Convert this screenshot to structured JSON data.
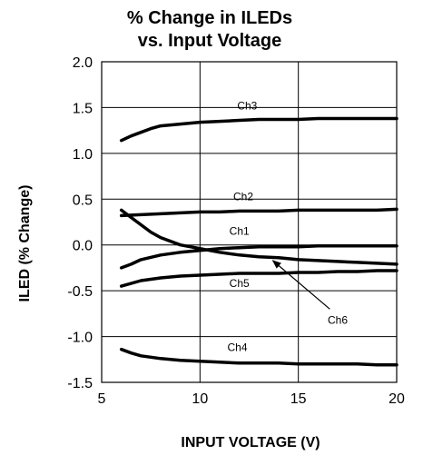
{
  "chart_data": {
    "type": "line",
    "title_lines": [
      "% Change in ILEDs",
      "vs. Input Voltage"
    ],
    "xlabel": "INPUT VOLTAGE (V)",
    "ylabel": "ILED (% Change)",
    "xlim": [
      5,
      20
    ],
    "ylim": [
      -1.5,
      2.0
    ],
    "xticks": [
      5,
      10,
      15,
      20
    ],
    "yticks": [
      "2.0",
      "1.5",
      "1.0",
      "0.5",
      "0.0",
      "-0.5",
      "-1.0",
      "-1.5"
    ],
    "ytick_values": [
      2.0,
      1.5,
      1.0,
      0.5,
      0.0,
      -0.5,
      -1.0,
      -1.5
    ],
    "grid": {
      "x": true,
      "y": true
    },
    "series": [
      {
        "name": "Ch3",
        "x": [
          6,
          6.5,
          7,
          7.5,
          8,
          9,
          10,
          11,
          12,
          13,
          14,
          15,
          16,
          17,
          18,
          19,
          20
        ],
        "values": [
          1.14,
          1.19,
          1.23,
          1.27,
          1.3,
          1.32,
          1.34,
          1.35,
          1.36,
          1.37,
          1.37,
          1.37,
          1.38,
          1.38,
          1.38,
          1.38,
          1.38
        ]
      },
      {
        "name": "Ch2",
        "x": [
          6,
          7,
          8,
          9,
          10,
          11,
          12,
          13,
          14,
          15,
          16,
          17,
          18,
          19,
          20
        ],
        "values": [
          0.32,
          0.33,
          0.34,
          0.35,
          0.36,
          0.36,
          0.37,
          0.37,
          0.37,
          0.38,
          0.38,
          0.38,
          0.38,
          0.38,
          0.39
        ]
      },
      {
        "name": "Ch1",
        "x": [
          6,
          6.5,
          7,
          8,
          9,
          10,
          11,
          12,
          13,
          14,
          15,
          16,
          17,
          18,
          19,
          20
        ],
        "values": [
          -0.25,
          -0.21,
          -0.16,
          -0.11,
          -0.08,
          -0.06,
          -0.04,
          -0.03,
          -0.02,
          -0.02,
          -0.02,
          -0.01,
          -0.01,
          -0.01,
          -0.01,
          -0.01
        ]
      },
      {
        "name": "Ch6",
        "x": [
          6,
          6.5,
          7,
          7.5,
          8,
          9,
          10,
          11,
          12,
          13,
          14,
          15,
          16,
          17,
          18,
          19,
          20
        ],
        "values": [
          0.38,
          0.3,
          0.22,
          0.14,
          0.08,
          0.0,
          -0.04,
          -0.08,
          -0.11,
          -0.13,
          -0.14,
          -0.16,
          -0.17,
          -0.18,
          -0.19,
          -0.2,
          -0.21
        ]
      },
      {
        "name": "Ch5",
        "x": [
          6,
          7,
          8,
          9,
          10,
          11,
          12,
          13,
          14,
          15,
          16,
          17,
          18,
          19,
          20
        ],
        "values": [
          -0.45,
          -0.39,
          -0.36,
          -0.34,
          -0.33,
          -0.32,
          -0.31,
          -0.31,
          -0.31,
          -0.3,
          -0.3,
          -0.29,
          -0.29,
          -0.28,
          -0.28
        ]
      },
      {
        "name": "Ch4",
        "x": [
          6,
          6.5,
          7,
          8,
          9,
          10,
          11,
          12,
          13,
          14,
          15,
          16,
          17,
          18,
          19,
          20
        ],
        "values": [
          -1.14,
          -1.18,
          -1.21,
          -1.24,
          -1.26,
          -1.27,
          -1.28,
          -1.29,
          -1.29,
          -1.29,
          -1.3,
          -1.3,
          -1.3,
          -1.3,
          -1.31,
          -1.31
        ]
      }
    ],
    "annotations": [
      {
        "text": "Ch3",
        "x": 12.4,
        "y": 1.52
      },
      {
        "text": "Ch2",
        "x": 12.2,
        "y": 0.53
      },
      {
        "text": "Ch1",
        "x": 12.0,
        "y": 0.15
      },
      {
        "text": "Ch5",
        "x": 12.0,
        "y": -0.42
      },
      {
        "text": "Ch6",
        "x": 17.0,
        "y": -0.82
      },
      {
        "text": "Ch4",
        "x": 11.9,
        "y": -1.12
      }
    ],
    "arrow": {
      "from_x": 16.6,
      "from_y": -0.7,
      "to_x": 13.7,
      "to_y": -0.17
    }
  }
}
